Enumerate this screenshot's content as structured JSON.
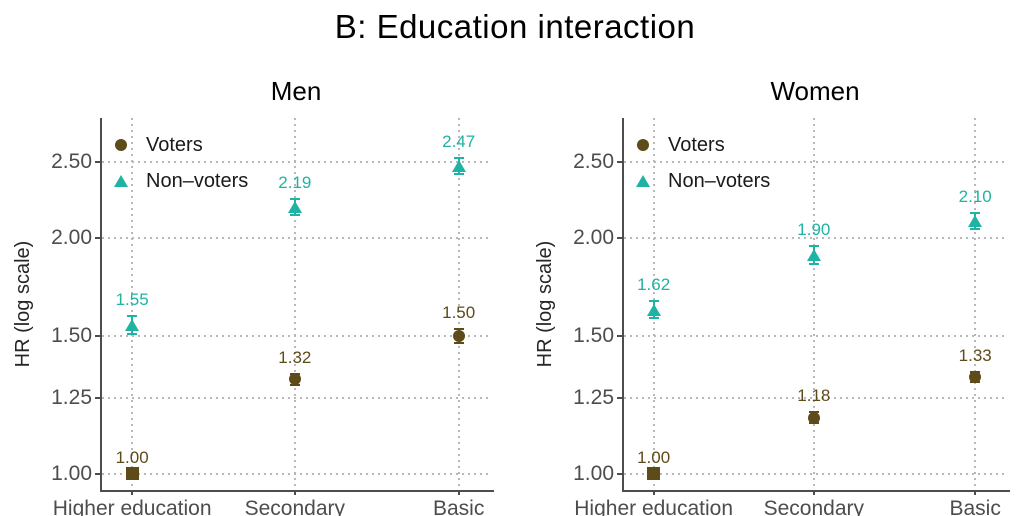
{
  "title": "B: Education interaction",
  "chart_data": {
    "type": "scatter",
    "title": "B: Education interaction",
    "subtitle": "",
    "ylabel": "HR (log scale)",
    "xlabel": "",
    "yscale": "log",
    "ylim": [
      0.954,
      2.842
    ],
    "yticks": [
      {
        "v": 1.0,
        "label": "1.00"
      },
      {
        "v": 1.25,
        "label": "1.25"
      },
      {
        "v": 1.5,
        "label": "1.50"
      },
      {
        "v": 2.0,
        "label": "2.00"
      },
      {
        "v": 2.5,
        "label": "2.50"
      }
    ],
    "categories": [
      "Higher education",
      "Secondary",
      "Basic"
    ],
    "grid": "dotted",
    "legend": {
      "position": "top-left-inside",
      "items": [
        {
          "label": "Voters",
          "marker": "circle",
          "color": "#5e4b1a"
        },
        {
          "label": "Non–voters",
          "marker": "triangle",
          "color": "#1fb3a3"
        }
      ]
    },
    "colors": {
      "voters": "#5e4b1a",
      "nonvoters": "#1fb3a3"
    },
    "panels": [
      {
        "title": "Men",
        "series": [
          {
            "name": "Voters",
            "marker": "circle",
            "color": "#5e4b1a",
            "points": [
              {
                "category": "Higher education",
                "value": 1.0,
                "label": "1.00",
                "marker": "square",
                "reference": true
              },
              {
                "category": "Secondary",
                "value": 1.32,
                "label": "1.32",
                "lo": 1.3,
                "hi": 1.34
              },
              {
                "category": "Basic",
                "value": 1.5,
                "label": "1.50",
                "lo": 1.47,
                "hi": 1.53
              }
            ]
          },
          {
            "name": "Non–voters",
            "marker": "triangle",
            "color": "#1fb3a3",
            "points": [
              {
                "category": "Higher education",
                "value": 1.55,
                "label": "1.55",
                "lo": 1.51,
                "hi": 1.59
              },
              {
                "category": "Secondary",
                "value": 2.19,
                "label": "2.19",
                "lo": 2.14,
                "hi": 2.24
              },
              {
                "category": "Basic",
                "value": 2.47,
                "label": "2.47",
                "lo": 2.41,
                "hi": 2.53
              }
            ]
          }
        ]
      },
      {
        "title": "Women",
        "series": [
          {
            "name": "Voters",
            "marker": "circle",
            "color": "#5e4b1a",
            "points": [
              {
                "category": "Higher education",
                "value": 1.0,
                "label": "1.00",
                "marker": "square",
                "reference": true
              },
              {
                "category": "Secondary",
                "value": 1.18,
                "label": "1.18",
                "lo": 1.16,
                "hi": 1.2
              },
              {
                "category": "Basic",
                "value": 1.33,
                "label": "1.33",
                "lo": 1.31,
                "hi": 1.35
              }
            ]
          },
          {
            "name": "Non–voters",
            "marker": "triangle",
            "color": "#1fb3a3",
            "points": [
              {
                "category": "Higher education",
                "value": 1.62,
                "label": "1.62",
                "lo": 1.58,
                "hi": 1.66
              },
              {
                "category": "Secondary",
                "value": 1.9,
                "label": "1.90",
                "lo": 1.85,
                "hi": 1.95
              },
              {
                "category": "Basic",
                "value": 2.1,
                "label": "2.10",
                "lo": 2.05,
                "hi": 2.15
              }
            ]
          }
        ]
      }
    ]
  }
}
